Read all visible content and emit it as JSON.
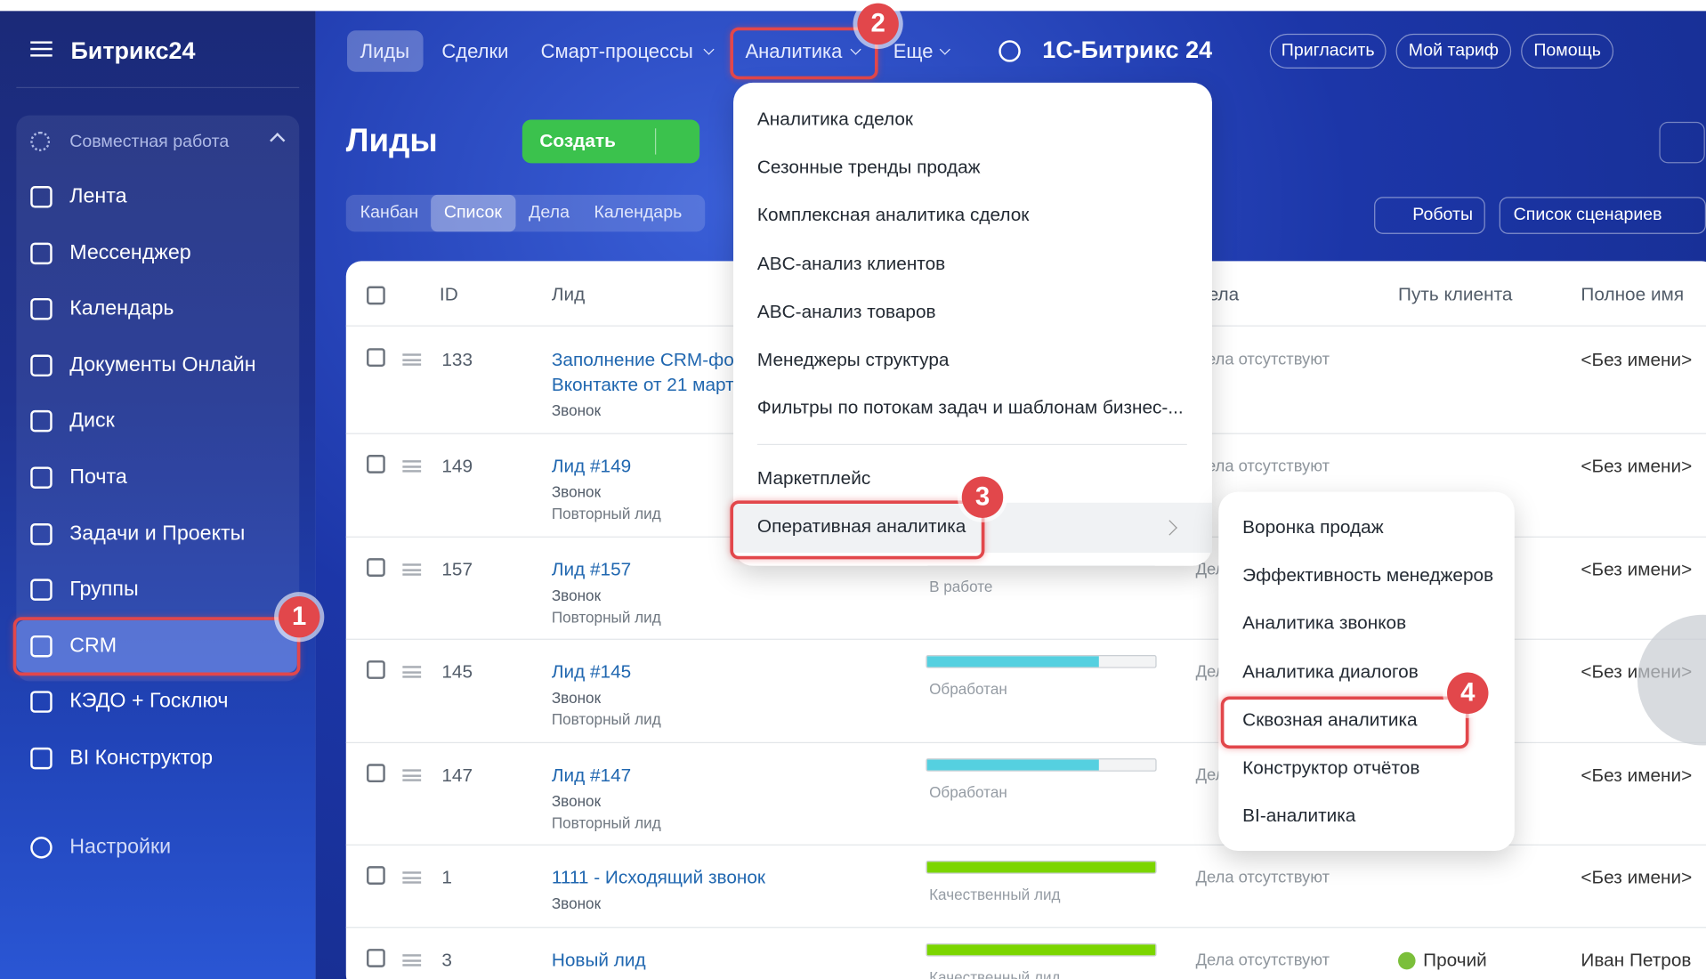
{
  "sidebar": {
    "logo": "Битрикс24",
    "group": "Совместная работа",
    "items": [
      "Лента",
      "Мессенджер",
      "Календарь",
      "Документы Онлайн",
      "Диск",
      "Почта",
      "Задачи и Проекты",
      "Группы",
      "CRM",
      "КЭДО + Госключ",
      "BI Конструктор"
    ],
    "settings": "Настройки"
  },
  "topnav": {
    "tabs": [
      "Лиды",
      "Сделки",
      "Смарт-процессы",
      "Аналитика",
      "Еще"
    ],
    "brand": "1С-Битрикс 24",
    "buttons": [
      "Пригласить",
      "Мой тариф",
      "Помощь"
    ]
  },
  "toolbar": {
    "title": "Лиды",
    "create": "Создать",
    "views": [
      "Канбан",
      "Список",
      "Дела",
      "Календарь"
    ],
    "robots": "Роботы",
    "scenarios": "Список сценариев"
  },
  "table": {
    "headers": [
      "ID",
      "Лид",
      "Дела",
      "Путь клиента",
      "Полное имя"
    ],
    "rows": [
      {
        "id": "133",
        "title": "Заполнение CRM-фо",
        "title2": "Вконтакте от 21 март",
        "type": "Звонок",
        "deals": "Дела отсутствуют",
        "name": "<Без имени>"
      },
      {
        "id": "149",
        "title": "Лид #149",
        "type": "Звонок",
        "sub": "Повторный лид",
        "deals": "Дела отсутствуют",
        "name": "<Без имени>"
      },
      {
        "id": "157",
        "title": "Лид #157",
        "type": "Звонок",
        "sub": "Повторный лид",
        "status": "В работе",
        "deals": "Дела отсутствуют",
        "name": "<Без имени>"
      },
      {
        "id": "145",
        "title": "Лид #145",
        "type": "Звонок",
        "sub": "Повторный лид",
        "status": "Обработан",
        "deals": "Дела отсутствуют",
        "name": "<Без имени>"
      },
      {
        "id": "147",
        "title": "Лид #147",
        "type": "Звонок",
        "sub": "Повторный лид",
        "status": "Обработан",
        "deals": "Дела отсутствуют",
        "name": "<Без имени>"
      },
      {
        "id": "1",
        "title": "1111 - Исходящий звонок",
        "type": "Звонок",
        "status": "Качественный лид",
        "deals": "Дела отсутствуют",
        "name": "<Без имени>"
      },
      {
        "id": "3",
        "title": "Новый лид",
        "status": "Качественный лид",
        "deals": "Дела отсутствуют",
        "path": "Прочий",
        "name": "Иван Петров"
      }
    ]
  },
  "menu": {
    "items": [
      "Аналитика сделок",
      "Сезонные тренды продаж",
      "Комплексная аналитика сделок",
      "ABC-анализ клиентов",
      "ABC-анализ товаров",
      "Менеджеры структура",
      "Фильтры по потокам задач и шаблонам бизнес-..."
    ],
    "marketplace": "Маркетплейс",
    "operative": "Оперативная аналитика"
  },
  "submenu": {
    "items": [
      "Воронка продаж",
      "Эффективность менеджеров",
      "Аналитика звонков",
      "Аналитика диалогов",
      "Сквозная аналитика",
      "Конструктор отчётов",
      "BI-аналитика"
    ]
  },
  "badges": [
    "1",
    "2",
    "3",
    "4"
  ]
}
